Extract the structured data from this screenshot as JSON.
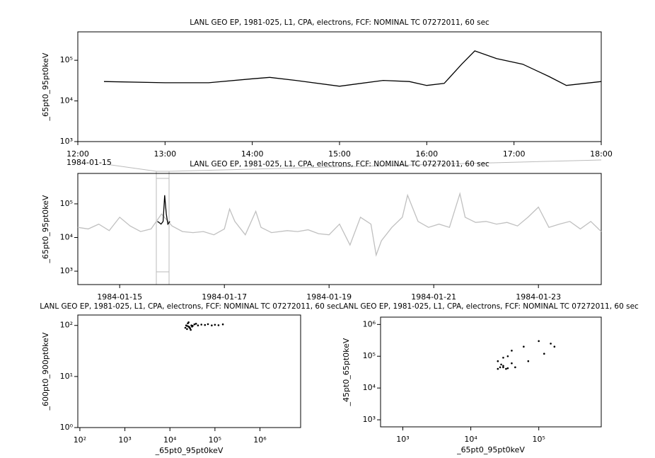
{
  "chart_data": [
    {
      "type": "line",
      "title": "LANL GEO EP, 1981-025, L1, CPA, electrons, FCF: NOMINAL TC 07272011, 60 sec",
      "y_label": "_65pt0_95pt0keV",
      "date_label": "1984-01-15",
      "log_y": true,
      "grid": false,
      "xlim": [
        12,
        18
      ],
      "xticks": [
        {
          "value": 12,
          "label": "12:00"
        },
        {
          "value": 13,
          "label": "13:00"
        },
        {
          "value": 14,
          "label": "14:00"
        },
        {
          "value": 15,
          "label": "15:00"
        },
        {
          "value": 16,
          "label": "16:00"
        },
        {
          "value": 17,
          "label": "17:00"
        },
        {
          "value": 18,
          "label": "18:00"
        }
      ],
      "ylim": [
        1000,
        500000
      ],
      "yticks": [
        {
          "value": 1000,
          "label": "10³"
        },
        {
          "value": 10000,
          "label": "10⁴"
        },
        {
          "value": 100000,
          "label": "10⁵"
        }
      ],
      "series": [
        {
          "color": "#000000",
          "x": [
            12.3,
            13.0,
            13.5,
            14.0,
            14.2,
            14.5,
            15.0,
            15.5,
            15.8,
            16.0,
            16.2,
            16.4,
            16.55,
            16.8,
            17.1,
            17.4,
            17.6,
            18.0
          ],
          "values": [
            30000,
            28000,
            28000,
            35000,
            38000,
            32000,
            23000,
            32000,
            30000,
            24000,
            27000,
            80000,
            170000,
            110000,
            80000,
            40000,
            24000,
            30000
          ]
        }
      ]
    },
    {
      "type": "line",
      "title": "LANL GEO EP, 1981-025, L1, CPA, electrons, FCF: NOMINAL TC 07272011, 60 sec",
      "y_label": "_65pt0_95pt0keV",
      "log_y": true,
      "grid": false,
      "xlim": [
        14.2,
        24.2
      ],
      "xticks": [
        {
          "value": 15,
          "label": "1984-01-15"
        },
        {
          "value": 17,
          "label": "1984-01-17"
        },
        {
          "value": 19,
          "label": "1984-01-19"
        },
        {
          "value": 21,
          "label": "1984-01-21"
        },
        {
          "value": 23,
          "label": "1984-01-23"
        }
      ],
      "ylim": [
        400,
        800000
      ],
      "yticks": [
        {
          "value": 1000,
          "label": "10³"
        },
        {
          "value": 10000,
          "label": "10⁴"
        },
        {
          "value": 100000,
          "label": "10⁵"
        }
      ],
      "series": [
        {
          "color": "#c0c0c0",
          "x": [
            14.2,
            14.4,
            14.6,
            14.8,
            15.0,
            15.2,
            15.4,
            15.6,
            15.8,
            16.0,
            16.2,
            16.4,
            16.6,
            16.8,
            17.0,
            17.1,
            17.2,
            17.4,
            17.6,
            17.7,
            17.9,
            18.2,
            18.4,
            18.6,
            18.8,
            19.0,
            19.2,
            19.4,
            19.6,
            19.8,
            19.9,
            20.0,
            20.2,
            20.4,
            20.5,
            20.7,
            20.9,
            21.1,
            21.3,
            21.5,
            21.6,
            21.8,
            22.0,
            22.2,
            22.4,
            22.6,
            22.8,
            23.0,
            23.2,
            23.4,
            23.6,
            23.8,
            24.0,
            24.2
          ],
          "values": [
            20000,
            18000,
            25000,
            16000,
            40000,
            22000,
            15000,
            18000,
            50000,
            22000,
            15000,
            14000,
            15000,
            12000,
            18000,
            70000,
            30000,
            12000,
            60000,
            20000,
            14000,
            16000,
            15000,
            17000,
            13000,
            12000,
            25000,
            6000,
            40000,
            25000,
            3000,
            8000,
            20000,
            40000,
            180000,
            30000,
            20000,
            25000,
            20000,
            200000,
            40000,
            28000,
            30000,
            25000,
            28000,
            22000,
            40000,
            80000,
            20000,
            25000,
            30000,
            18000,
            30000,
            15000
          ]
        },
        {
          "color": "#000000",
          "x": [
            15.72,
            15.75,
            15.79,
            15.83,
            15.86,
            15.89,
            15.92,
            15.96
          ],
          "values": [
            30000,
            28000,
            25000,
            30000,
            180000,
            50000,
            25000,
            30000
          ]
        }
      ]
    },
    {
      "type": "scatter",
      "title": "LANL GEO EP, 1981-025, L1, CPA, electrons, FCF: NOMINAL TC 07272011, 60 sec",
      "x_label": "_65pt0_95pt0keV",
      "y_label": "_600pt0_900pt0keV",
      "log_x": true,
      "log_y": true,
      "grid": false,
      "xlim": [
        90,
        8000000
      ],
      "xticks": [
        {
          "value": 100,
          "label": "10²"
        },
        {
          "value": 1000,
          "label": "10³"
        },
        {
          "value": 10000,
          "label": "10⁴"
        },
        {
          "value": 100000,
          "label": "10⁵"
        },
        {
          "value": 1000000,
          "label": "10⁶"
        }
      ],
      "ylim": [
        1,
        160
      ],
      "yticks": [
        {
          "value": 1,
          "label": "10⁰"
        },
        {
          "value": 10,
          "label": "10¹"
        },
        {
          "value": 100,
          "label": "10²"
        }
      ],
      "series": [
        {
          "color": "#000000",
          "x": [
            22000,
            24000,
            26000,
            28000,
            30000,
            25000,
            27000,
            32000,
            35000,
            23000,
            29000,
            38000,
            42000,
            50000,
            60000,
            70000,
            85000,
            100000,
            120000,
            150000,
            26000,
            31000,
            24000
          ],
          "values": [
            90,
            85,
            95,
            88,
            100,
            110,
            92,
            98,
            105,
            100,
            82,
            108,
            100,
            104,
            102,
            106,
            100,
            103,
            101,
            105,
            115,
            95,
            98
          ]
        }
      ]
    },
    {
      "type": "scatter",
      "title": "LANL GEO EP, 1981-025, L1, CPA, electrons, FCF: NOMINAL TC 07272011, 60 sec",
      "x_label": "_65pt0_95pt0keV",
      "y_label": "_45pt0_65pt0keV",
      "log_x": true,
      "log_y": true,
      "grid": false,
      "xlim": [
        470,
        830000
      ],
      "xticks": [
        {
          "value": 1000,
          "label": "10³"
        },
        {
          "value": 10000,
          "label": "10⁴"
        },
        {
          "value": 100000,
          "label": "10⁵"
        }
      ],
      "ylim": [
        600,
        1700000
      ],
      "yticks": [
        {
          "value": 1000,
          "label": "10³"
        },
        {
          "value": 10000,
          "label": "10⁴"
        },
        {
          "value": 100000,
          "label": "10⁵"
        },
        {
          "value": 1000000,
          "label": "10⁶"
        }
      ],
      "series": [
        {
          "color": "#000000",
          "x": [
            30000,
            25000,
            35000,
            40000,
            30000,
            40000,
            60000,
            100000,
            150000,
            170000,
            120000,
            70000,
            45000,
            30000,
            25000,
            35000,
            28000,
            27000,
            33000
          ],
          "values": [
            50000,
            40000,
            42000,
            60000,
            90000,
            150000,
            200000,
            300000,
            250000,
            200000,
            120000,
            70000,
            45000,
            45000,
            70000,
            100000,
            55000,
            45000,
            40000
          ]
        }
      ]
    }
  ]
}
